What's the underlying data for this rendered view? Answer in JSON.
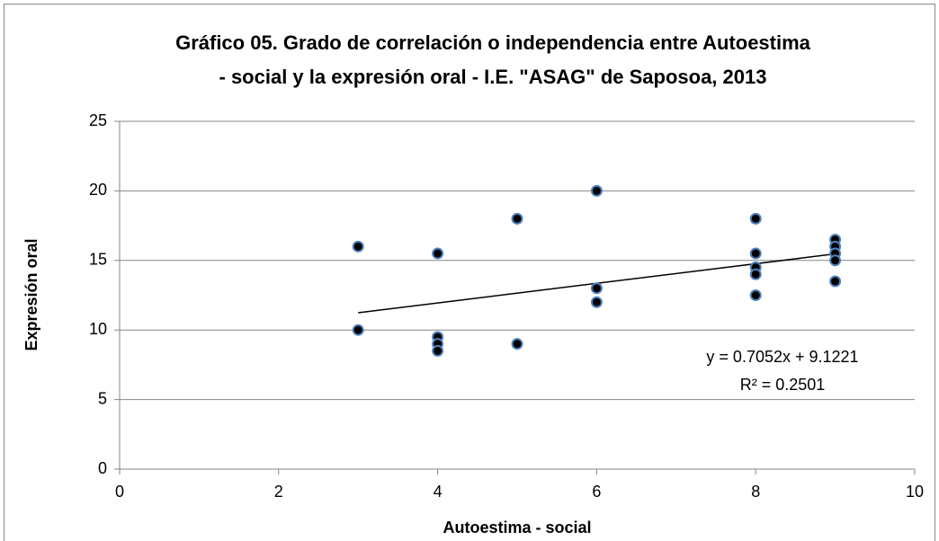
{
  "chart_data": {
    "type": "scatter",
    "title": [
      "Gráfico 05. Grado de correlación o independencia entre Autoestima",
      "- social y la expresión oral -  I.E. \"ASAG\" de Saposoa, 2013"
    ],
    "x_label": "Autoestima - social",
    "y_label": "Expresión oral",
    "x": [
      3,
      3,
      4,
      4,
      4,
      4,
      5,
      5,
      6,
      6,
      6,
      8,
      8,
      8,
      8,
      8,
      9,
      9,
      9,
      9,
      9
    ],
    "values": [
      16,
      10,
      15.5,
      9.5,
      9,
      8.5,
      18,
      9,
      20,
      13,
      12,
      18,
      15.5,
      14.5,
      14,
      12.5,
      16.5,
      16,
      15.5,
      15,
      13.5
    ],
    "color": "#000000",
    "edge_color": "#4f81bd",
    "xlim": [
      0,
      10
    ],
    "xticks": [
      0,
      2,
      4,
      6,
      8,
      10
    ],
    "ylim": [
      0,
      25
    ],
    "yticks": [
      0,
      5,
      10,
      15,
      20,
      25
    ],
    "grid": true,
    "trendline": {
      "slope": 0.7052,
      "intercept": 9.1221,
      "label": "y = 0.7052x + 9.1221",
      "r2_label": "R² = 0.2501"
    }
  }
}
